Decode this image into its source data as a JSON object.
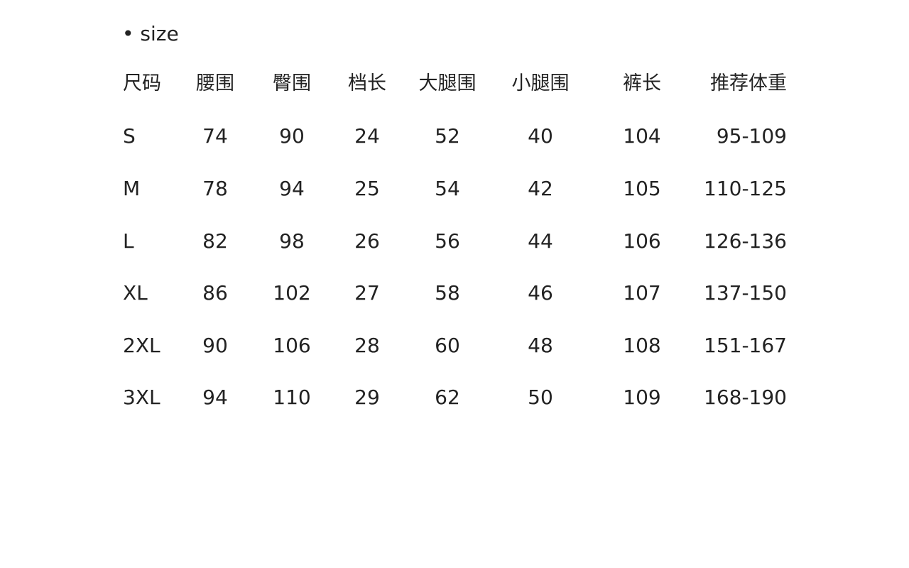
{
  "title": "• size",
  "table": {
    "headers": [
      "尺码",
      "腰围",
      "臀围",
      "档长",
      "大腿围",
      "小腿围",
      "裤长",
      "推荐体重"
    ],
    "rows": [
      [
        "S",
        "74",
        "90",
        "24",
        "52",
        "40",
        "104",
        "95-109"
      ],
      [
        "M",
        "78",
        "94",
        "25",
        "54",
        "42",
        "105",
        "110-125"
      ],
      [
        "L",
        "82",
        "98",
        "26",
        "56",
        "44",
        "106",
        "126-136"
      ],
      [
        "XL",
        "86",
        "102",
        "27",
        "58",
        "46",
        "107",
        "137-150"
      ],
      [
        "2XL",
        "90",
        "106",
        "28",
        "60",
        "48",
        "108",
        "151-167"
      ],
      [
        "3XL",
        "94",
        "110",
        "29",
        "62",
        "50",
        "109",
        "168-190"
      ]
    ]
  }
}
